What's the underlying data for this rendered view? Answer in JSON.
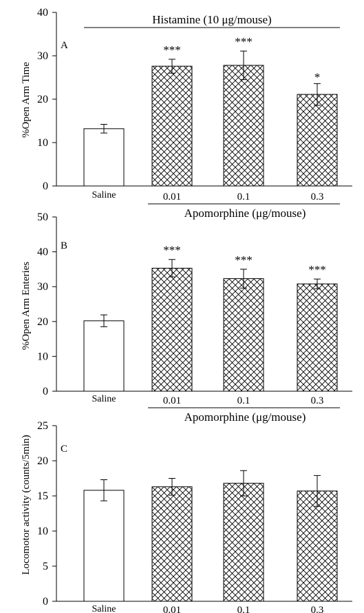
{
  "chart_data": [
    {
      "type": "bar",
      "panel_label": "A",
      "header": "Histamine (10 μg/mouse)",
      "ylabel": "%Open Arm Time",
      "xlabel": "",
      "group_label": "Apomorphine (μg/mouse)",
      "categories": [
        "Saline",
        "0.01",
        "0.1",
        "0.3"
      ],
      "values": [
        13.2,
        27.6,
        27.8,
        21.1
      ],
      "errors": [
        1.0,
        1.6,
        3.3,
        2.5
      ],
      "significance": [
        "",
        "***",
        "***",
        "*"
      ],
      "ylim": [
        0,
        40
      ],
      "yticks": [
        "0",
        "10",
        "20",
        "30",
        "40"
      ],
      "grid": false
    },
    {
      "type": "bar",
      "panel_label": "B",
      "ylabel": "%Open Arm Enteries",
      "xlabel": "",
      "group_label": "Apomorphine (μg/mouse)",
      "categories": [
        "Saline",
        "0.01",
        "0.1",
        "0.3"
      ],
      "values": [
        20.2,
        35.3,
        32.3,
        30.8
      ],
      "errors": [
        1.7,
        2.5,
        2.7,
        1.4
      ],
      "significance": [
        "",
        "***",
        "***",
        "***"
      ],
      "ylim": [
        0,
        50
      ],
      "yticks": [
        "0",
        "10",
        "20",
        "30",
        "40",
        "50"
      ],
      "grid": false
    },
    {
      "type": "bar",
      "panel_label": "C",
      "ylabel": "Locomotor activity (counts/5min)",
      "xlabel": "",
      "group_label": "Apomorphine (μg/mouse)",
      "categories": [
        "Saline",
        "0.01",
        "0.1",
        "0.3"
      ],
      "values": [
        15.8,
        16.3,
        16.8,
        15.7
      ],
      "errors": [
        1.5,
        1.2,
        1.8,
        2.2
      ],
      "significance": [
        "",
        "",
        "",
        ""
      ],
      "ylim": [
        0,
        25
      ],
      "yticks": [
        "0",
        "5",
        "10",
        "15",
        "20",
        "25"
      ],
      "grid": false
    }
  ]
}
